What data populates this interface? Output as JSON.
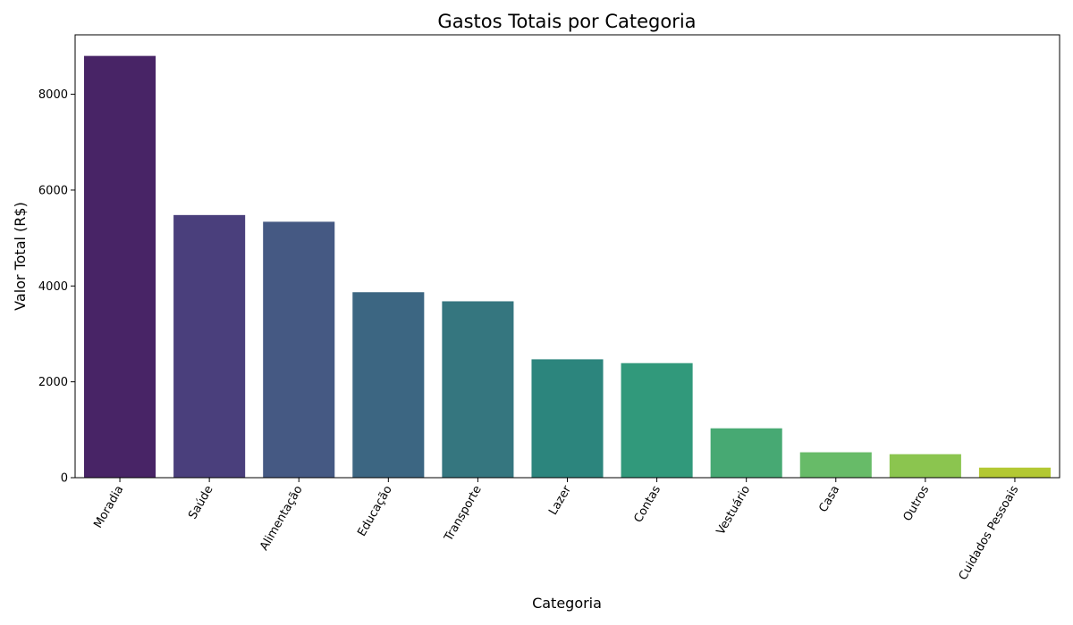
{
  "chart_data": {
    "type": "bar",
    "title": "Gastos Totais por Categoria",
    "xlabel": "Categoria",
    "ylabel": "Valor Total (R$)",
    "categories": [
      "Moradia",
      "Saúde",
      "Alimentação",
      "Educação",
      "Transporte",
      "Lazer",
      "Contas",
      "Vestuário",
      "Casa",
      "Outros",
      "Cuidados Pessoais"
    ],
    "values": [
      8800,
      5480,
      5340,
      3870,
      3680,
      2470,
      2390,
      1030,
      530,
      490,
      210
    ],
    "colors": [
      "#482466",
      "#4a3f7c",
      "#455983",
      "#3c6682",
      "#35767f",
      "#2c857d",
      "#31997b",
      "#47a973",
      "#67bb68",
      "#8bc54f",
      "#b3c833"
    ],
    "ylim": [
      0,
      9240
    ],
    "yticks": [
      0,
      2000,
      4000,
      6000,
      8000
    ],
    "grid": false,
    "legend": "none"
  }
}
